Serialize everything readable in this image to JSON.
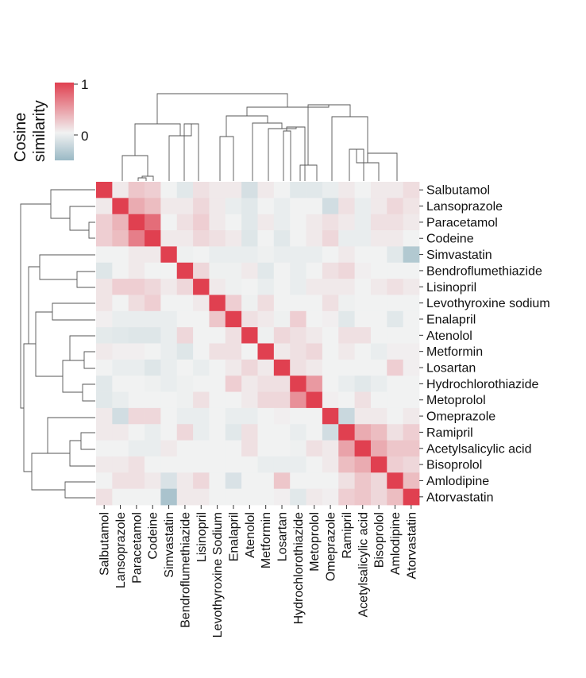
{
  "chart_data": {
    "type": "heatmap",
    "title": "",
    "colorbar": {
      "title_lines": [
        "Cosine",
        "similarity"
      ],
      "tick_labels": [
        "1",
        "0"
      ],
      "tick_values": [
        1,
        0
      ],
      "range": [
        -0.55,
        1
      ],
      "low_color": "#9ab9c5",
      "mid_color": "#f1f2f2",
      "high_color": "#e04050"
    },
    "row_labels": [
      "Salbutamol",
      "Lansoprazole",
      "Paracetamol",
      "Codeine",
      "Simvastatin",
      "Bendroflumethiazide",
      "Lisinopril",
      "Levothyroxine sodium",
      "Enalapril",
      "Atenolol",
      "Metformin",
      "Losartan",
      "Hydrochlorothiazide",
      "Metoprolol",
      "Omeprazole",
      "Ramipril",
      "Acetylsalicylic acid",
      "Bisoprolol",
      "Amlodipine",
      "Atorvastatin"
    ],
    "col_labels": [
      "Salbutamol",
      "Lansoprazole",
      "Paracetamol",
      "Codeine",
      "Simvastatin",
      "Bendroflumethiazide",
      "Lisinopril",
      "Levothyroxine Sodium",
      "Enalapril",
      "Atenolol",
      "Metformin",
      "Losartan",
      "Hydrochlorothiazide",
      "Metoprolol",
      "Omeprazole",
      "Ramipril",
      "Acetylsalicylic acid",
      "Bisoprolol",
      "Amlodipine",
      "Atorvastatin"
    ],
    "values": [
      [
        1.0,
        0.05,
        0.25,
        0.2,
        0.0,
        -0.1,
        0.1,
        0.05,
        0.05,
        -0.18,
        0.05,
        0.0,
        -0.1,
        -0.1,
        -0.05,
        0.05,
        0.0,
        0.05,
        0.05,
        0.12
      ],
      [
        0.05,
        1.0,
        0.4,
        0.3,
        0.05,
        0.05,
        0.15,
        0.05,
        -0.05,
        -0.1,
        0.0,
        -0.05,
        0.0,
        0.0,
        -0.2,
        0.1,
        -0.05,
        0.05,
        0.15,
        0.08
      ],
      [
        0.2,
        0.35,
        1.0,
        0.75,
        0.0,
        0.1,
        0.2,
        0.05,
        0.0,
        -0.1,
        0.05,
        -0.05,
        0.0,
        0.05,
        0.1,
        0.05,
        -0.05,
        0.1,
        0.1,
        0.05
      ],
      [
        0.2,
        0.3,
        0.65,
        1.0,
        0.05,
        0.05,
        0.15,
        0.1,
        0.05,
        -0.12,
        0.0,
        -0.1,
        0.0,
        0.05,
        0.15,
        -0.05,
        -0.05,
        0.05,
        0.05,
        0.0
      ],
      [
        0.0,
        0.0,
        0.05,
        0.05,
        1.0,
        -0.02,
        0.0,
        -0.05,
        -0.05,
        -0.05,
        -0.02,
        -0.05,
        -0.05,
        -0.05,
        0.0,
        0.05,
        0.0,
        0.0,
        -0.1,
        -0.4
      ],
      [
        -0.12,
        0.0,
        0.05,
        0.0,
        0.0,
        1.0,
        0.15,
        -0.02,
        -0.02,
        0.05,
        -0.1,
        0.0,
        -0.05,
        0.0,
        0.1,
        0.15,
        0.02,
        0.0,
        0.0,
        0.0
      ],
      [
        0.08,
        0.2,
        0.2,
        0.15,
        0.05,
        0.15,
        1.0,
        0.05,
        -0.02,
        0.0,
        -0.05,
        0.0,
        -0.05,
        0.05,
        0.05,
        0.05,
        0.0,
        0.05,
        0.1,
        0.05
      ],
      [
        0.08,
        0.0,
        0.12,
        0.2,
        0.0,
        0.0,
        0.05,
        1.0,
        0.2,
        -0.02,
        0.12,
        0.0,
        0.0,
        0.0,
        0.1,
        -0.02,
        0.0,
        0.0,
        0.0,
        0.0
      ],
      [
        0.02,
        -0.05,
        -0.05,
        -0.05,
        -0.05,
        0.0,
        0.0,
        0.25,
        1.0,
        0.1,
        0.05,
        -0.02,
        0.2,
        0.0,
        0.02,
        -0.1,
        0.0,
        0.0,
        -0.1,
        0.0
      ],
      [
        -0.08,
        -0.1,
        -0.12,
        -0.12,
        -0.05,
        0.15,
        0.0,
        0.0,
        0.1,
        1.0,
        -0.02,
        0.15,
        0.1,
        0.05,
        0.0,
        0.1,
        0.1,
        0.0,
        0.0,
        0.0
      ],
      [
        0.05,
        0.02,
        0.02,
        0.0,
        -0.05,
        -0.12,
        0.0,
        0.1,
        0.1,
        0.0,
        1.0,
        0.05,
        0.1,
        0.15,
        0.0,
        0.05,
        0.0,
        -0.05,
        0.02,
        0.02
      ],
      [
        0.0,
        -0.05,
        -0.05,
        -0.12,
        -0.05,
        0.0,
        -0.05,
        0.0,
        0.05,
        0.15,
        0.05,
        1.0,
        0.1,
        0.05,
        0.0,
        0.0,
        0.0,
        0.0,
        0.2,
        0.02
      ],
      [
        -0.1,
        0.0,
        0.0,
        -0.02,
        -0.05,
        -0.02,
        0.0,
        0.0,
        0.2,
        0.05,
        0.1,
        0.1,
        1.0,
        0.5,
        0.0,
        -0.05,
        -0.1,
        -0.05,
        0.0,
        0.0
      ],
      [
        -0.1,
        -0.05,
        0.0,
        0.0,
        0.0,
        -0.02,
        0.1,
        0.0,
        0.0,
        0.05,
        0.15,
        0.15,
        0.55,
        1.0,
        0.02,
        0.0,
        0.1,
        0.0,
        0.0,
        0.0
      ],
      [
        0.05,
        -0.2,
        0.15,
        0.15,
        0.0,
        -0.05,
        -0.05,
        0.0,
        -0.05,
        -0.05,
        0.0,
        0.02,
        0.0,
        0.0,
        1.0,
        -0.25,
        0.05,
        0.05,
        0.0,
        0.05
      ],
      [
        0.05,
        0.05,
        0.0,
        -0.05,
        0.0,
        0.15,
        -0.05,
        0.0,
        -0.1,
        0.1,
        0.0,
        0.0,
        -0.05,
        0.0,
        -0.2,
        1.0,
        0.4,
        0.3,
        0.1,
        0.2
      ],
      [
        0.0,
        0.0,
        -0.05,
        -0.05,
        0.05,
        0.0,
        0.0,
        0.0,
        0.0,
        0.1,
        0.0,
        0.0,
        -0.02,
        0.1,
        0.05,
        0.45,
        1.0,
        0.4,
        0.25,
        0.25
      ],
      [
        0.05,
        0.05,
        0.1,
        0.0,
        0.0,
        0.0,
        0.0,
        0.0,
        0.0,
        0.0,
        -0.05,
        -0.05,
        -0.05,
        0.0,
        0.05,
        0.3,
        0.4,
        1.0,
        0.2,
        0.15
      ],
      [
        0.0,
        0.1,
        0.1,
        0.05,
        -0.15,
        0.05,
        0.15,
        0.0,
        -0.15,
        0.0,
        0.0,
        0.25,
        0.0,
        0.0,
        0.0,
        0.1,
        0.25,
        0.15,
        1.0,
        0.3
      ],
      [
        0.1,
        0.0,
        0.0,
        0.0,
        -0.45,
        0.05,
        0.05,
        0.0,
        0.0,
        0.0,
        0.0,
        0.02,
        -0.1,
        0.05,
        0.02,
        0.2,
        0.25,
        0.15,
        0.3,
        1.0
      ]
    ]
  }
}
